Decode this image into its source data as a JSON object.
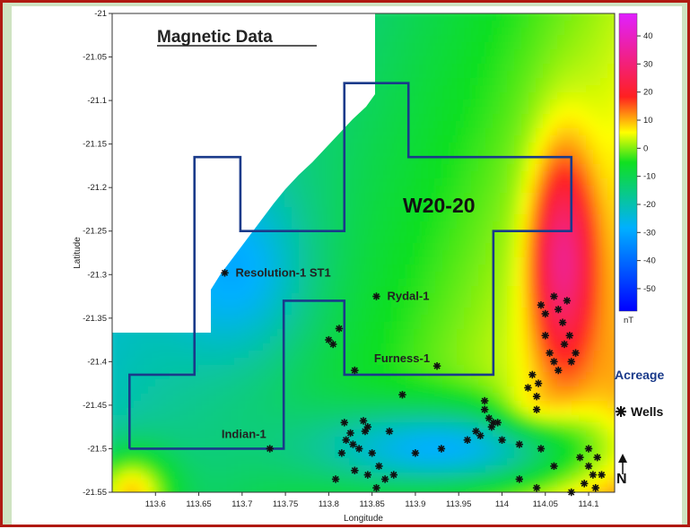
{
  "chart_data": {
    "type": "heatmap",
    "title": "Magnetic Data",
    "xlabel": "Longitude",
    "ylabel": "Latitude",
    "xlim": [
      113.55,
      114.13
    ],
    "ylim": [
      -21.55,
      -21.0
    ],
    "x_ticks": [
      "113.6",
      "113.65",
      "113.7",
      "113.75",
      "113.8",
      "113.85",
      "113.9",
      "113.95",
      "114",
      "114.05",
      "114.1"
    ],
    "y_ticks": [
      "-21",
      "-21.05",
      "-21.1",
      "-21.15",
      "-21.2",
      "-21.25",
      "-21.3",
      "-21.35",
      "-21.4",
      "-21.45",
      "-21.5",
      "-21.55"
    ],
    "colorbar": {
      "unit": "nT",
      "range": [
        -58,
        48
      ],
      "ticks": [
        "40",
        "30",
        "20",
        "10",
        "0",
        "-10",
        "-20",
        "-30",
        "-40",
        "-50"
      ]
    },
    "acreage_label": "W20-20",
    "acreage_outline": [
      [
        113.57,
        -21.5
      ],
      [
        113.57,
        -21.415
      ],
      [
        113.645,
        -21.415
      ],
      [
        113.645,
        -21.165
      ],
      [
        113.698,
        -21.165
      ],
      [
        113.698,
        -21.25
      ],
      [
        113.818,
        -21.25
      ],
      [
        113.818,
        -21.08
      ],
      [
        113.892,
        -21.08
      ],
      [
        113.892,
        -21.165
      ],
      [
        114.08,
        -21.165
      ],
      [
        114.08,
        -21.25
      ],
      [
        113.99,
        -21.25
      ],
      [
        113.99,
        -21.415
      ],
      [
        113.818,
        -21.415
      ],
      [
        113.818,
        -21.33
      ],
      [
        113.748,
        -21.33
      ],
      [
        113.748,
        -21.5
      ],
      [
        113.57,
        -21.5
      ]
    ],
    "named_wells": [
      {
        "name": "Resolution-1 ST1",
        "lon": 113.68,
        "lat": -21.298
      },
      {
        "name": "Rydal-1",
        "lon": 113.855,
        "lat": -21.325
      },
      {
        "name": "Furness-1",
        "lon": 113.925,
        "lat": -21.405
      },
      {
        "name": "Indian-1",
        "lon": 113.732,
        "lat": -21.5
      }
    ],
    "other_wells": [
      [
        113.8,
        -21.375
      ],
      [
        113.805,
        -21.38
      ],
      [
        113.812,
        -21.362
      ],
      [
        113.83,
        -21.41
      ],
      [
        113.885,
        -21.438
      ],
      [
        113.84,
        -21.468
      ],
      [
        113.845,
        -21.475
      ],
      [
        113.842,
        -21.48
      ],
      [
        113.818,
        -21.47
      ],
      [
        113.825,
        -21.482
      ],
      [
        113.82,
        -21.49
      ],
      [
        113.828,
        -21.495
      ],
      [
        113.835,
        -21.5
      ],
      [
        113.815,
        -21.505
      ],
      [
        113.85,
        -21.505
      ],
      [
        113.858,
        -21.52
      ],
      [
        113.87,
        -21.48
      ],
      [
        113.83,
        -21.525
      ],
      [
        113.845,
        -21.53
      ],
      [
        113.808,
        -21.535
      ],
      [
        113.865,
        -21.535
      ],
      [
        113.875,
        -21.53
      ],
      [
        113.855,
        -21.545
      ],
      [
        113.9,
        -21.505
      ],
      [
        113.93,
        -21.5
      ],
      [
        113.96,
        -21.49
      ],
      [
        113.97,
        -21.48
      ],
      [
        113.975,
        -21.485
      ],
      [
        113.985,
        -21.465
      ],
      [
        113.98,
        -21.455
      ],
      [
        113.988,
        -21.475
      ],
      [
        113.995,
        -21.47
      ],
      [
        113.98,
        -21.445
      ],
      [
        113.99,
        -21.47
      ],
      [
        114.0,
        -21.49
      ],
      [
        114.02,
        -21.495
      ],
      [
        114.03,
        -21.43
      ],
      [
        114.035,
        -21.415
      ],
      [
        114.04,
        -21.44
      ],
      [
        114.042,
        -21.425
      ],
      [
        114.04,
        -21.455
      ],
      [
        114.055,
        -21.39
      ],
      [
        114.06,
        -21.4
      ],
      [
        114.065,
        -21.41
      ],
      [
        114.072,
        -21.38
      ],
      [
        114.078,
        -21.37
      ],
      [
        114.085,
        -21.39
      ],
      [
        114.08,
        -21.4
      ],
      [
        114.045,
        -21.335
      ],
      [
        114.05,
        -21.345
      ],
      [
        114.06,
        -21.325
      ],
      [
        114.065,
        -21.34
      ],
      [
        114.07,
        -21.355
      ],
      [
        114.075,
        -21.33
      ],
      [
        114.05,
        -21.37
      ],
      [
        114.045,
        -21.5
      ],
      [
        114.06,
        -21.52
      ],
      [
        114.09,
        -21.51
      ],
      [
        114.1,
        -21.52
      ],
      [
        114.105,
        -21.53
      ],
      [
        114.11,
        -21.51
      ],
      [
        114.1,
        -21.5
      ],
      [
        114.108,
        -21.545
      ],
      [
        114.095,
        -21.54
      ],
      [
        114.04,
        -21.545
      ],
      [
        114.02,
        -21.535
      ],
      [
        114.08,
        -21.55
      ],
      [
        114.115,
        -21.53
      ]
    ]
  },
  "legend": {
    "acreage_label": "Acreage",
    "wells_label": "Wells",
    "north_label": "N"
  }
}
